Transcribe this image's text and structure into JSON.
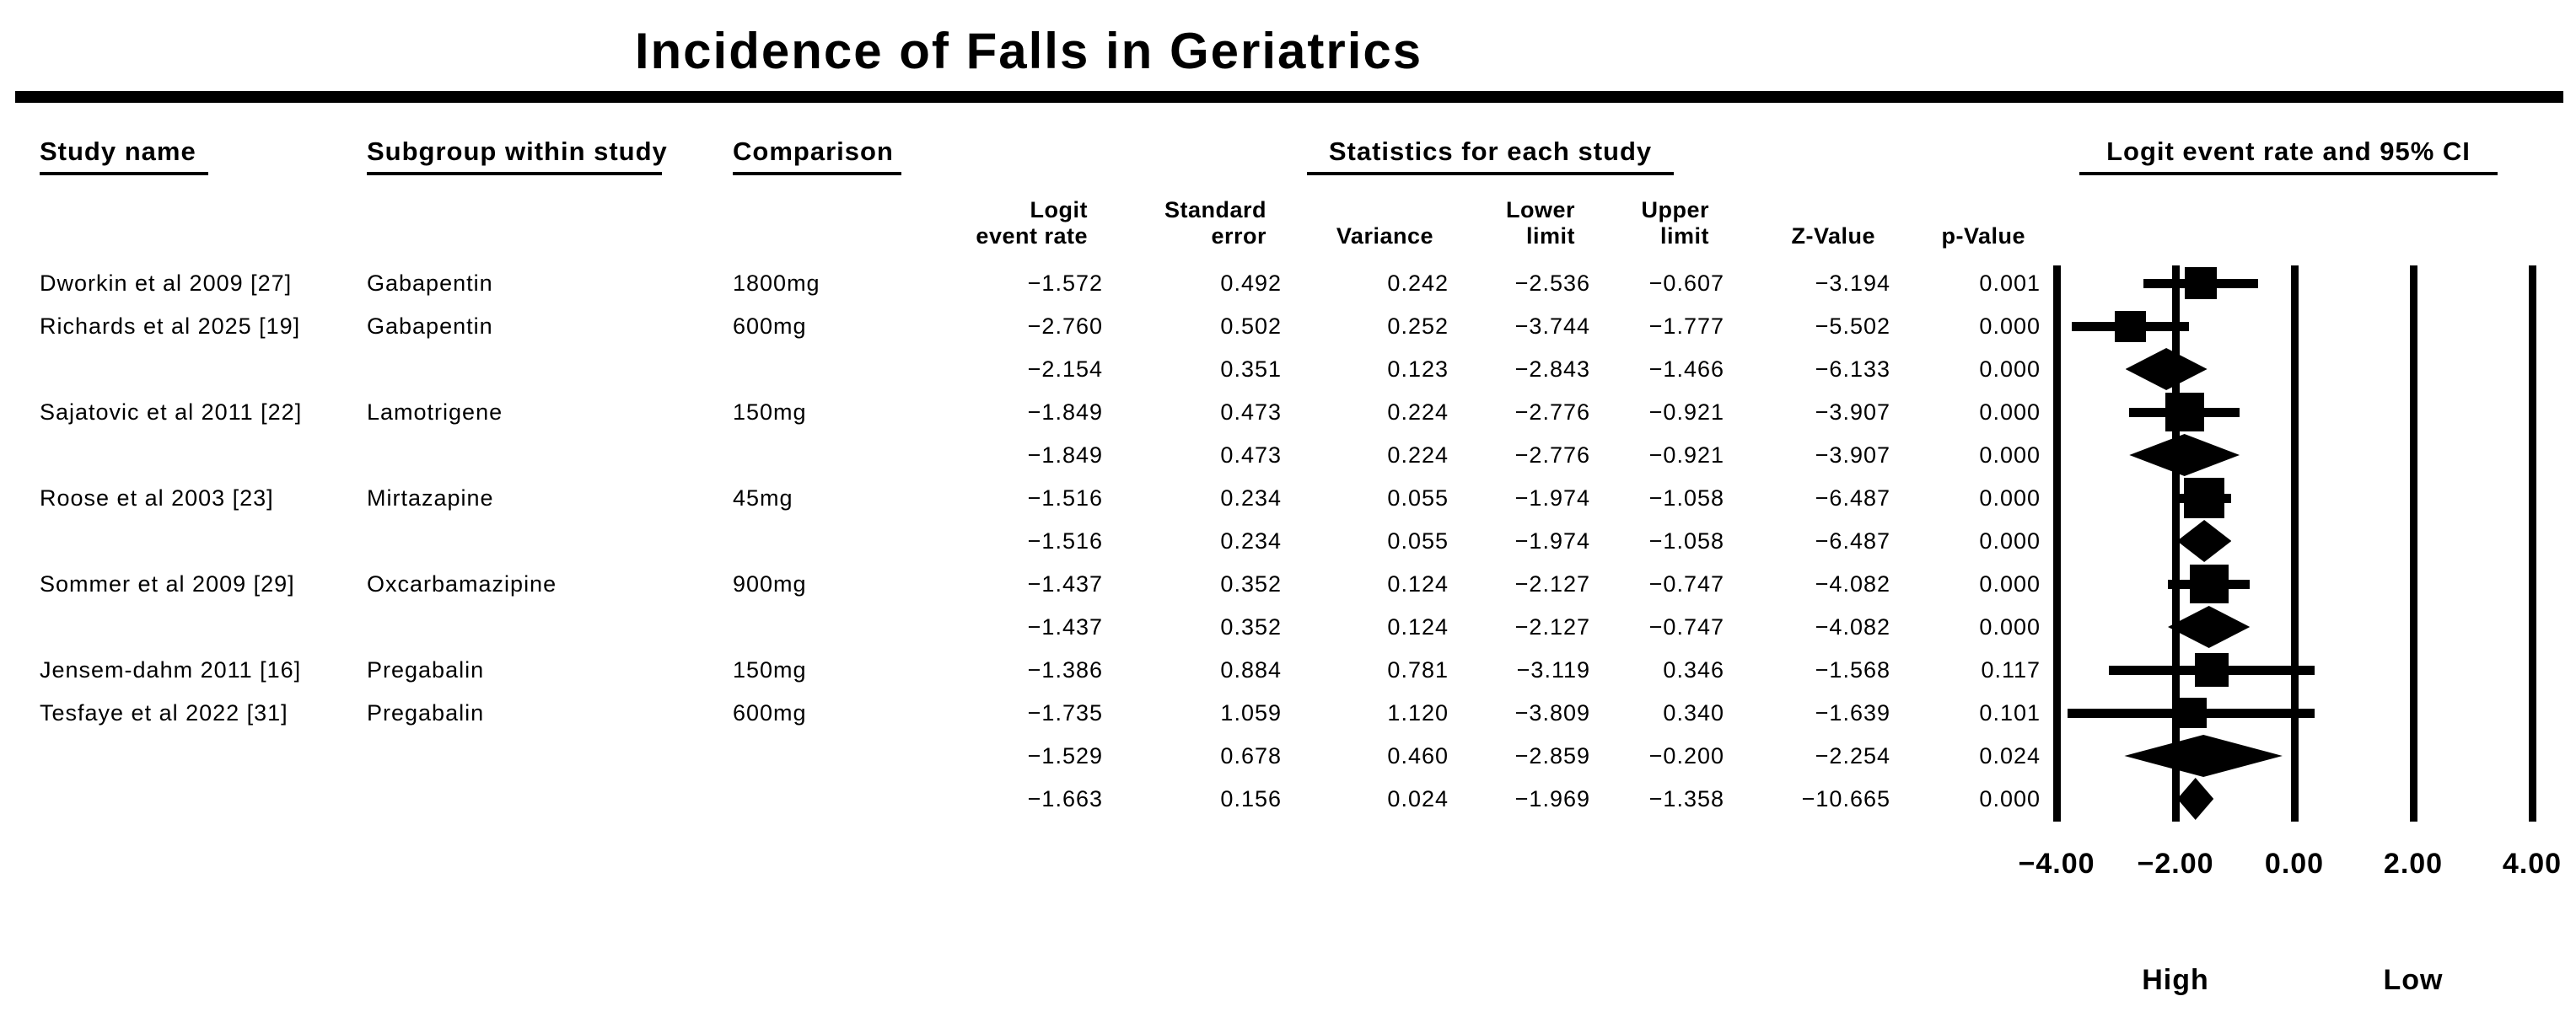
{
  "title": "Incidence of Falls in Geriatrics",
  "columns": {
    "study": "Study name",
    "subgroup": "Subgroup within study",
    "comparison": "Comparison",
    "stats_group": "Statistics for each study",
    "plot_group": "Logit event rate and 95% CI",
    "stat_cols": [
      {
        "id": "logit_event_rate",
        "label": "Logit\nevent rate"
      },
      {
        "id": "standard_error",
        "label": "Standard\nerror"
      },
      {
        "id": "variance",
        "label": "Variance"
      },
      {
        "id": "lower_limit",
        "label": "Lower\nlimit"
      },
      {
        "id": "upper_limit",
        "label": "Upper\nlimit"
      },
      {
        "id": "z_value",
        "label": "Z-Value"
      },
      {
        "id": "p_value",
        "label": "p-Value"
      }
    ]
  },
  "chart_data": {
    "type": "forest",
    "title": "Incidence of Falls in Geriatrics",
    "x_axis": {
      "tick_labels": [
        "−4.00",
        "−2.00",
        "0.00",
        "2.00",
        "4.00"
      ],
      "tick_values": [
        -4,
        -2,
        0,
        2,
        4
      ],
      "xlim": [
        -4,
        4
      ],
      "left_direction_label": "High",
      "right_direction_label": "Low",
      "grid": "vertical-reference-lines"
    },
    "rows": [
      {
        "study": "Dworkin et al 2009 [27]",
        "subgroup": "Gabapentin",
        "comparison": "1800mg",
        "logit_event_rate": "−1.572",
        "standard_error": "0.492",
        "variance": "0.242",
        "lower_limit": "−2.536",
        "upper_limit": "−0.607",
        "z_value": "−3.194",
        "p_value": "0.001",
        "marker": "square",
        "marker_size_px": 38
      },
      {
        "study": "Richards et al 2025 [19]",
        "subgroup": "Gabapentin",
        "comparison": "600mg",
        "logit_event_rate": "−2.760",
        "standard_error": "0.502",
        "variance": "0.252",
        "lower_limit": "−3.744",
        "upper_limit": "−1.777",
        "z_value": "−5.502",
        "p_value": "0.000",
        "marker": "square",
        "marker_size_px": 37
      },
      {
        "study": "",
        "subgroup": "",
        "comparison": "",
        "logit_event_rate": "−2.154",
        "standard_error": "0.351",
        "variance": "0.123",
        "lower_limit": "−2.843",
        "upper_limit": "−1.466",
        "z_value": "−6.133",
        "p_value": "0.000",
        "marker": "diamond"
      },
      {
        "study": "Sajatovic et al 2011 [22]",
        "subgroup": "Lamotrigene",
        "comparison": "150mg",
        "logit_event_rate": "−1.849",
        "standard_error": "0.473",
        "variance": "0.224",
        "lower_limit": "−2.776",
        "upper_limit": "−0.921",
        "z_value": "−3.907",
        "p_value": "0.000",
        "marker": "square",
        "marker_size_px": 46
      },
      {
        "study": "",
        "subgroup": "",
        "comparison": "",
        "logit_event_rate": "−1.849",
        "standard_error": "0.473",
        "variance": "0.224",
        "lower_limit": "−2.776",
        "upper_limit": "−0.921",
        "z_value": "−3.907",
        "p_value": "0.000",
        "marker": "diamond"
      },
      {
        "study": "Roose et al 2003 [23]",
        "subgroup": "Mirtazapine",
        "comparison": "45mg",
        "logit_event_rate": "−1.516",
        "standard_error": "0.234",
        "variance": "0.055",
        "lower_limit": "−1.974",
        "upper_limit": "−1.058",
        "z_value": "−6.487",
        "p_value": "0.000",
        "marker": "square",
        "marker_size_px": 48
      },
      {
        "study": "",
        "subgroup": "",
        "comparison": "",
        "logit_event_rate": "−1.516",
        "standard_error": "0.234",
        "variance": "0.055",
        "lower_limit": "−1.974",
        "upper_limit": "−1.058",
        "z_value": "−6.487",
        "p_value": "0.000",
        "marker": "diamond"
      },
      {
        "study": "Sommer et al 2009 [29]",
        "subgroup": "Oxcarbamazipine",
        "comparison": "900mg",
        "logit_event_rate": "−1.437",
        "standard_error": "0.352",
        "variance": "0.124",
        "lower_limit": "−2.127",
        "upper_limit": "−0.747",
        "z_value": "−4.082",
        "p_value": "0.000",
        "marker": "square",
        "marker_size_px": 46
      },
      {
        "study": "",
        "subgroup": "",
        "comparison": "",
        "logit_event_rate": "−1.437",
        "standard_error": "0.352",
        "variance": "0.124",
        "lower_limit": "−2.127",
        "upper_limit": "−0.747",
        "z_value": "−4.082",
        "p_value": "0.000",
        "marker": "diamond"
      },
      {
        "study": "Jensem-dahm 2011 [16]",
        "subgroup": "Pregabalin",
        "comparison": "150mg",
        "logit_event_rate": "−1.386",
        "standard_error": "0.884",
        "variance": "0.781",
        "lower_limit": "−3.119",
        "upper_limit": "0.346",
        "z_value": "−1.568",
        "p_value": "0.117",
        "marker": "square",
        "marker_size_px": 40
      },
      {
        "study": "Tesfaye et al 2022 [31]",
        "subgroup": "Pregabalin",
        "comparison": "600mg",
        "logit_event_rate": "−1.735",
        "standard_error": "1.059",
        "variance": "1.120",
        "lower_limit": "−3.809",
        "upper_limit": "0.340",
        "z_value": "−1.639",
        "p_value": "0.101",
        "marker": "square",
        "marker_size_px": 36
      },
      {
        "study": "",
        "subgroup": "",
        "comparison": "",
        "logit_event_rate": "−1.529",
        "standard_error": "0.678",
        "variance": "0.460",
        "lower_limit": "−2.859",
        "upper_limit": "−0.200",
        "z_value": "−2.254",
        "p_value": "0.024",
        "marker": "diamond"
      },
      {
        "study": "",
        "subgroup": "",
        "comparison": "",
        "logit_event_rate": "−1.663",
        "standard_error": "0.156",
        "variance": "0.024",
        "lower_limit": "−1.969",
        "upper_limit": "−1.358",
        "z_value": "−10.665",
        "p_value": "0.000",
        "marker": "diamond"
      }
    ],
    "colors": {
      "foreground": "#000000",
      "background": "#ffffff"
    }
  }
}
